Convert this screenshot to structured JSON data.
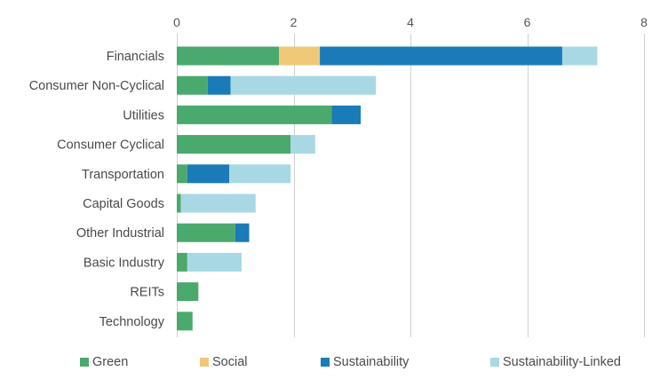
{
  "chart_data": {
    "type": "bar",
    "orientation": "horizontal",
    "stacked": true,
    "title": "",
    "xlabel": "",
    "ylabel": "",
    "xlim": [
      0,
      8
    ],
    "xticks": [
      0,
      2,
      4,
      6,
      8
    ],
    "grid": "vertical",
    "legend_position": "bottom",
    "categories": [
      "Financials",
      "Consumer Non-Cyclical",
      "Utilities",
      "Consumer Cyclical",
      "Transportation",
      "Capital Goods",
      "Other Industrial",
      "Basic Industry",
      "REITs",
      "Technology"
    ],
    "series": [
      {
        "name": "Green",
        "color": "#4aa96c",
        "values": [
          1.75,
          0.53,
          2.65,
          1.95,
          0.18,
          0.07,
          1.0,
          0.18,
          0.37,
          0.27
        ]
      },
      {
        "name": "Social",
        "color": "#f0c878",
        "values": [
          0.7,
          0,
          0,
          0,
          0,
          0,
          0,
          0,
          0,
          0
        ]
      },
      {
        "name": "Sustainability",
        "color": "#1a7bb8",
        "values": [
          4.15,
          0.39,
          0.5,
          0,
          0.72,
          0,
          0.24,
          0,
          0,
          0
        ]
      },
      {
        "name": "Sustainability-Linked",
        "color": "#a8d8e4",
        "values": [
          0.6,
          2.49,
          0,
          0.42,
          1.05,
          1.28,
          0,
          0.93,
          0,
          0
        ]
      }
    ]
  }
}
